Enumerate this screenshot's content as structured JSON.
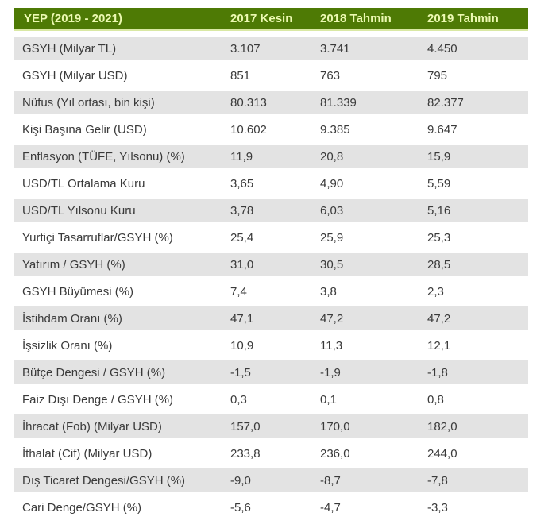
{
  "colors": {
    "header_bg": "#4e7a05",
    "header_text": "#ecf9b2",
    "header_underline": "#d9e8a4",
    "row_alt_bg": "#e3e3e3",
    "row_bg": "#ffffff",
    "body_text": "#3a3a3a"
  },
  "table": {
    "header": {
      "title": "YEP (2019 - 2021)",
      "columns": [
        "2017 Kesin",
        "2018 Tahmin",
        "2019 Tahmin"
      ]
    },
    "rows": [
      {
        "label": "GSYH (Milyar TL)",
        "v2017": "3.107",
        "v2018": "3.741",
        "v2019": "4.450"
      },
      {
        "label": "GSYH (Milyar USD)",
        "v2017": "851",
        "v2018": "763",
        "v2019": "795"
      },
      {
        "label": "Nüfus (Yıl ortası, bin kişi)",
        "v2017": "80.313",
        "v2018": "81.339",
        "v2019": "82.377"
      },
      {
        "label": "Kişi Başına Gelir (USD)",
        "v2017": "10.602",
        "v2018": "9.385",
        "v2019": "9.647"
      },
      {
        "label": "Enflasyon (TÜFE, Yılsonu) (%)",
        "v2017": "11,9",
        "v2018": "20,8",
        "v2019": "15,9"
      },
      {
        "label": "USD/TL Ortalama Kuru",
        "v2017": "3,65",
        "v2018": "4,90",
        "v2019": "5,59"
      },
      {
        "label": "USD/TL Yılsonu Kuru",
        "v2017": "3,78",
        "v2018": "6,03",
        "v2019": "5,16"
      },
      {
        "label": "Yurtiçi Tasarruflar/GSYH (%)",
        "v2017": "25,4",
        "v2018": "25,9",
        "v2019": "25,3"
      },
      {
        "label": "Yatırım / GSYH (%)",
        "v2017": "31,0",
        "v2018": "30,5",
        "v2019": "28,5"
      },
      {
        "label": "GSYH Büyümesi (%)",
        "v2017": "7,4",
        "v2018": "3,8",
        "v2019": "2,3"
      },
      {
        "label": "İstihdam Oranı (%)",
        "v2017": "47,1",
        "v2018": "47,2",
        "v2019": "47,2"
      },
      {
        "label": "İşsizlik Oranı (%)",
        "v2017": "10,9",
        "v2018": "11,3",
        "v2019": "12,1"
      },
      {
        "label": "Bütçe Dengesi / GSYH (%)",
        "v2017": "-1,5",
        "v2018": "-1,9",
        "v2019": "-1,8"
      },
      {
        "label": "Faiz Dışı Denge / GSYH (%)",
        "v2017": "0,3",
        "v2018": "0,1",
        "v2019": "0,8"
      },
      {
        "label": "İhracat (Fob) (Milyar USD)",
        "v2017": "157,0",
        "v2018": "170,0",
        "v2019": "182,0"
      },
      {
        "label": "İthalat (Cif) (Milyar USD)",
        "v2017": "233,8",
        "v2018": "236,0",
        "v2019": "244,0"
      },
      {
        "label": "Dış Ticaret Dengesi/GSYH (%)",
        "v2017": "-9,0",
        "v2018": "-8,7",
        "v2019": "-7,8"
      },
      {
        "label": "Cari Denge/GSYH (%)",
        "v2017": "-5,6",
        "v2018": "-4,7",
        "v2019": "-3,3"
      }
    ]
  },
  "chart_data": {
    "type": "table",
    "title": "YEP (2019 - 2021)",
    "columns": [
      "YEP (2019 - 2021)",
      "2017 Kesin",
      "2018 Tahmin",
      "2019 Tahmin"
    ],
    "rows": [
      [
        "GSYH (Milyar TL)",
        "3.107",
        "3.741",
        "4.450"
      ],
      [
        "GSYH (Milyar USD)",
        "851",
        "763",
        "795"
      ],
      [
        "Nüfus (Yıl ortası, bin kişi)",
        "80.313",
        "81.339",
        "82.377"
      ],
      [
        "Kişi Başına Gelir (USD)",
        "10.602",
        "9.385",
        "9.647"
      ],
      [
        "Enflasyon (TÜFE, Yılsonu) (%)",
        "11,9",
        "20,8",
        "15,9"
      ],
      [
        "USD/TL Ortalama Kuru",
        "3,65",
        "4,90",
        "5,59"
      ],
      [
        "USD/TL Yılsonu Kuru",
        "3,78",
        "6,03",
        "5,16"
      ],
      [
        "Yurtiçi Tasarruflar/GSYH (%)",
        "25,4",
        "25,9",
        "25,3"
      ],
      [
        "Yatırım / GSYH (%)",
        "31,0",
        "30,5",
        "28,5"
      ],
      [
        "GSYH Büyümesi (%)",
        "7,4",
        "3,8",
        "2,3"
      ],
      [
        "İstihdam Oranı (%)",
        "47,1",
        "47,2",
        "47,2"
      ],
      [
        "İşsizlik Oranı (%)",
        "10,9",
        "11,3",
        "12,1"
      ],
      [
        "Bütçe Dengesi / GSYH (%)",
        "-1,5",
        "-1,9",
        "-1,8"
      ],
      [
        "Faiz Dışı Denge / GSYH (%)",
        "0,3",
        "0,1",
        "0,8"
      ],
      [
        "İhracat (Fob) (Milyar USD)",
        "157,0",
        "170,0",
        "182,0"
      ],
      [
        "İthalat (Cif) (Milyar USD)",
        "233,8",
        "236,0",
        "244,0"
      ],
      [
        "Dış Ticaret Dengesi/GSYH (%)",
        "-9,0",
        "-8,7",
        "-7,8"
      ],
      [
        "Cari Denge/GSYH (%)",
        "-5,6",
        "-4,7",
        "-3,3"
      ]
    ]
  }
}
